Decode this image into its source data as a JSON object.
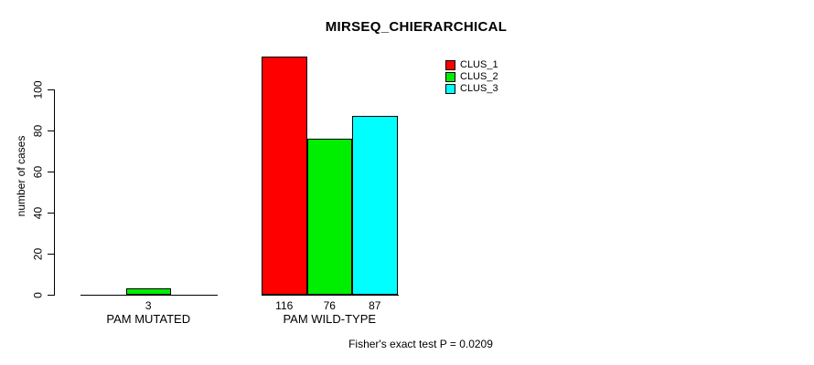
{
  "title": "MIRSEQ_CHIERARCHICAL",
  "footer": "Fisher's exact test P = 0.0209",
  "chart_data": {
    "type": "bar",
    "title": "MIRSEQ_CHIERARCHICAL",
    "xlabel": "",
    "ylabel": "number of cases",
    "categories": [
      "PAM MUTATED",
      "PAM WILD-TYPE"
    ],
    "series": [
      {
        "name": "CLUS_1",
        "color": "#ff0000",
        "values": [
          0,
          116
        ],
        "value_labels": [
          "",
          "116"
        ]
      },
      {
        "name": "CLUS_2",
        "color": "#00ee00",
        "values": [
          3,
          76
        ],
        "value_labels": [
          "3",
          "76"
        ]
      },
      {
        "name": "CLUS_3",
        "color": "#00ffff",
        "values": [
          0,
          87
        ],
        "value_labels": [
          "",
          "87"
        ]
      }
    ],
    "ylim": [
      0,
      100
    ],
    "yticks": [
      0,
      20,
      40,
      60,
      80,
      100
    ],
    "grid": false,
    "legend_position": "top-right",
    "annotation": "Fisher's exact test P = 0.0209"
  }
}
